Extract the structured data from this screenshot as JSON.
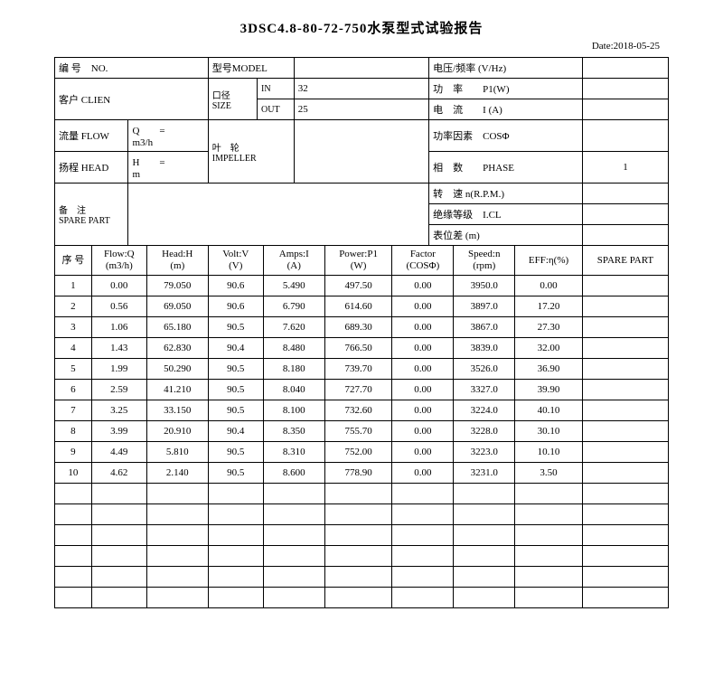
{
  "title": "3DSC4.8-80-72-750水泵型式试验报告",
  "date": "Date:2018-05-25",
  "header": {
    "no_label": "编 号　NO.",
    "model_label": "型号MODEL",
    "volt_label": "电压/频率 (V/Hz)",
    "client_label": "客户 CLIEN",
    "size_label": "口径\nSIZE",
    "size_in_label": "IN",
    "size_in": "32",
    "power_label": "功　率　　P1(W)",
    "size_out_label": "OUT",
    "size_out": "25",
    "current_label": "电　流　　I (A)",
    "flow_label": "流量 FLOW",
    "flow_eq": "Q　　=　　　　　m3/h",
    "impeller_label": "叶　轮\nIMPELLER",
    "pf_label": "功率因素　COSΦ",
    "head_label": "扬程 HEAD",
    "head_eq": "H　　=　　　　　m",
    "phase_label": "相　数　　PHASE",
    "phase_val": "1",
    "spare_label": "备　注\nSPARE PART",
    "speed_label": "转　速 n(R.P.M.)",
    "insul_label": "绝缘等级　I.CL",
    "level_label": "表位差 (m)"
  },
  "cols": {
    "seq": "序 号",
    "flow": "Flow:Q\n(m3/h)",
    "head": "Head:H\n(m)",
    "volt": "Volt:V\n(V)",
    "amps": "Amps:I\n(A)",
    "power": "Power:P1\n(W)",
    "factor": "Factor\n(COSΦ)",
    "speed": "Speed:n\n(rpm)",
    "eff": "EFF:η(%)",
    "spare": "SPARE PART"
  },
  "rows": [
    {
      "n": "1",
      "flow": "0.00",
      "head": "79.050",
      "volt": "90.6",
      "amps": "5.490",
      "power": "497.50",
      "factor": "0.00",
      "speed": "3950.0",
      "eff": "0.00"
    },
    {
      "n": "2",
      "flow": "0.56",
      "head": "69.050",
      "volt": "90.6",
      "amps": "6.790",
      "power": "614.60",
      "factor": "0.00",
      "speed": "3897.0",
      "eff": "17.20"
    },
    {
      "n": "3",
      "flow": "1.06",
      "head": "65.180",
      "volt": "90.5",
      "amps": "7.620",
      "power": "689.30",
      "factor": "0.00",
      "speed": "3867.0",
      "eff": "27.30"
    },
    {
      "n": "4",
      "flow": "1.43",
      "head": "62.830",
      "volt": "90.4",
      "amps": "8.480",
      "power": "766.50",
      "factor": "0.00",
      "speed": "3839.0",
      "eff": "32.00"
    },
    {
      "n": "5",
      "flow": "1.99",
      "head": "50.290",
      "volt": "90.5",
      "amps": "8.180",
      "power": "739.70",
      "factor": "0.00",
      "speed": "3526.0",
      "eff": "36.90"
    },
    {
      "n": "6",
      "flow": "2.59",
      "head": "41.210",
      "volt": "90.5",
      "amps": "8.040",
      "power": "727.70",
      "factor": "0.00",
      "speed": "3327.0",
      "eff": "39.90"
    },
    {
      "n": "7",
      "flow": "3.25",
      "head": "33.150",
      "volt": "90.5",
      "amps": "8.100",
      "power": "732.60",
      "factor": "0.00",
      "speed": "3224.0",
      "eff": "40.10"
    },
    {
      "n": "8",
      "flow": "3.99",
      "head": "20.910",
      "volt": "90.4",
      "amps": "8.350",
      "power": "755.70",
      "factor": "0.00",
      "speed": "3228.0",
      "eff": "30.10"
    },
    {
      "n": "9",
      "flow": "4.49",
      "head": "5.810",
      "volt": "90.5",
      "amps": "8.310",
      "power": "752.00",
      "factor": "0.00",
      "speed": "3223.0",
      "eff": "10.10"
    },
    {
      "n": "10",
      "flow": "4.62",
      "head": "2.140",
      "volt": "90.5",
      "amps": "8.600",
      "power": "778.90",
      "factor": "0.00",
      "speed": "3231.0",
      "eff": "3.50"
    }
  ],
  "empty_rows": 6,
  "widths": {
    "seq": "6%",
    "flow": "9%",
    "head": "10%",
    "volt": "9%",
    "amps": "10%",
    "power": "11%",
    "factor": "10%",
    "speed": "10%",
    "eff": "11%",
    "spare": "14%"
  }
}
